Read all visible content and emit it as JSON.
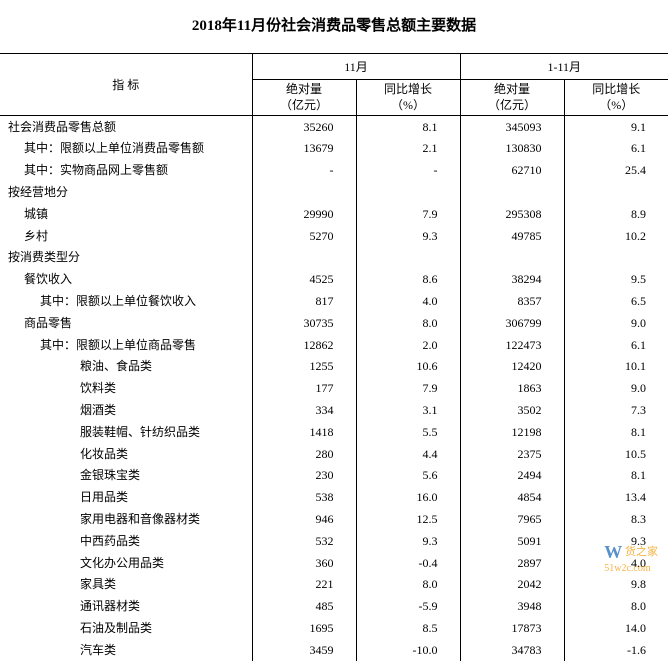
{
  "title": "2018年11月份社会消费品零售总额主要数据",
  "header": {
    "indicator": "指 标",
    "group1": "11月",
    "group2": "1-11月",
    "col_abs": "绝对量\n（亿元）",
    "col_yoy": "同比增长\n（%）"
  },
  "rows": [
    {
      "label": "社会消费品零售总额",
      "indent": 0,
      "v1": "35260",
      "v2": "8.1",
      "v3": "345093",
      "v4": "9.1"
    },
    {
      "label": "其中：限额以上单位消费品零售额",
      "indent": 1,
      "v1": "13679",
      "v2": "2.1",
      "v3": "130830",
      "v4": "6.1"
    },
    {
      "label": "其中：实物商品网上零售额",
      "indent": 1,
      "v1": "-",
      "v2": "-",
      "v3": "62710",
      "v4": "25.4"
    },
    {
      "label": "按经营地分",
      "indent": 0,
      "v1": "",
      "v2": "",
      "v3": "",
      "v4": ""
    },
    {
      "label": "城镇",
      "indent": 1,
      "v1": "29990",
      "v2": "7.9",
      "v3": "295308",
      "v4": "8.9"
    },
    {
      "label": "乡村",
      "indent": 1,
      "v1": "5270",
      "v2": "9.3",
      "v3": "49785",
      "v4": "10.2"
    },
    {
      "label": "按消费类型分",
      "indent": 0,
      "v1": "",
      "v2": "",
      "v3": "",
      "v4": ""
    },
    {
      "label": "餐饮收入",
      "indent": 1,
      "v1": "4525",
      "v2": "8.6",
      "v3": "38294",
      "v4": "9.5"
    },
    {
      "label": "其中：限额以上单位餐饮收入",
      "indent": 2,
      "v1": "817",
      "v2": "4.0",
      "v3": "8357",
      "v4": "6.5"
    },
    {
      "label": "商品零售",
      "indent": 1,
      "v1": "30735",
      "v2": "8.0",
      "v3": "306799",
      "v4": "9.0"
    },
    {
      "label": "其中：限额以上单位商品零售",
      "indent": 2,
      "v1": "12862",
      "v2": "2.0",
      "v3": "122473",
      "v4": "6.1"
    },
    {
      "label": "粮油、食品类",
      "indent": 3,
      "v1": "1255",
      "v2": "10.6",
      "v3": "12420",
      "v4": "10.1"
    },
    {
      "label": "饮料类",
      "indent": 3,
      "v1": "177",
      "v2": "7.9",
      "v3": "1863",
      "v4": "9.0"
    },
    {
      "label": "烟酒类",
      "indent": 3,
      "v1": "334",
      "v2": "3.1",
      "v3": "3502",
      "v4": "7.3"
    },
    {
      "label": "服装鞋帽、针纺织品类",
      "indent": 3,
      "v1": "1418",
      "v2": "5.5",
      "v3": "12198",
      "v4": "8.1"
    },
    {
      "label": "化妆品类",
      "indent": 3,
      "v1": "280",
      "v2": "4.4",
      "v3": "2375",
      "v4": "10.5"
    },
    {
      "label": "金银珠宝类",
      "indent": 3,
      "v1": "230",
      "v2": "5.6",
      "v3": "2494",
      "v4": "8.1"
    },
    {
      "label": "日用品类",
      "indent": 3,
      "v1": "538",
      "v2": "16.0",
      "v3": "4854",
      "v4": "13.4"
    },
    {
      "label": "家用电器和音像器材类",
      "indent": 3,
      "v1": "946",
      "v2": "12.5",
      "v3": "7965",
      "v4": "8.3"
    },
    {
      "label": "中西药品类",
      "indent": 3,
      "v1": "532",
      "v2": "9.3",
      "v3": "5091",
      "v4": "9.3"
    },
    {
      "label": "文化办公用品类",
      "indent": 3,
      "v1": "360",
      "v2": "-0.4",
      "v3": "2897",
      "v4": "4.0"
    },
    {
      "label": "家具类",
      "indent": 3,
      "v1": "221",
      "v2": "8.0",
      "v3": "2042",
      "v4": "9.8"
    },
    {
      "label": "通讯器材类",
      "indent": 3,
      "v1": "485",
      "v2": "-5.9",
      "v3": "3948",
      "v4": "8.0"
    },
    {
      "label": "石油及制品类",
      "indent": 3,
      "v1": "1695",
      "v2": "8.5",
      "v3": "17873",
      "v4": "14.0"
    },
    {
      "label": "汽车类",
      "indent": 3,
      "v1": "3459",
      "v2": "-10.0",
      "v3": "34783",
      "v4": "-1.6"
    }
  ],
  "watermark": {
    "brand": "货之家",
    "sub": "51w2c.com"
  }
}
